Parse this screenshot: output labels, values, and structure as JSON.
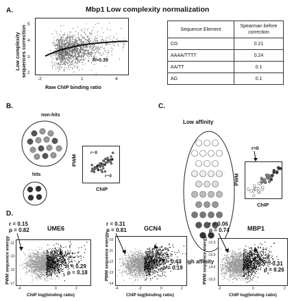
{
  "panel_a": {
    "label": "A.",
    "title": "Mbp1 Low complexity normalization",
    "ylabel_line1": "Low complexity",
    "ylabel_line2": "sequences correction",
    "xlabel": "Raw ChIP binding ratio",
    "yticks": [
      "5",
      "4",
      "3",
      "2"
    ],
    "xticks": [
      "-2",
      "1",
      "4"
    ],
    "r_label": "R=0.39",
    "table": {
      "headers": [
        "Sequence Element",
        "Spearman before correction"
      ],
      "rows": [
        [
          "CG",
          "0.21"
        ],
        [
          "AAAA/TTTT",
          "0.24"
        ],
        [
          "AA/TT",
          "0.1"
        ],
        [
          "AG",
          "0.1"
        ]
      ]
    }
  },
  "panel_b": {
    "label": "B.",
    "nonhits": "non-hits",
    "hits": "hits",
    "ylabel": "PWM",
    "xlabel": "ChIP",
    "r1": "r~0",
    "r2": "r~0"
  },
  "panel_c": {
    "label": "C.",
    "low": "Low affinity",
    "high": "High affinity",
    "ylabel": "PWM",
    "xlabel": "ChIP",
    "r": "r>0"
  },
  "panel_d": {
    "label": "D.",
    "ylabel": "PWM sequence energy",
    "xlabel": "ChIP log(binding ratio)",
    "plots": [
      {
        "name": "UME6",
        "r1": "r = 0.15",
        "rho1": "ρ = 0.82",
        "r2": "r = 0.29",
        "rho2": "ρ = 0.18",
        "yticks": [
          "-11",
          "-13",
          "-15",
          "-17"
        ],
        "xticks": [
          "-4",
          "0",
          "2"
        ]
      },
      {
        "name": "GCN4",
        "r1": "r = 0.31",
        "rho1": "ρ = 0.81",
        "r2": "r = 0.43",
        "rho2": "ρ = 0.19",
        "yticks": [
          "-10",
          "-11",
          "-12",
          "-13",
          "-14"
        ],
        "xticks": [
          "-4",
          "-2",
          "0",
          "2"
        ]
      },
      {
        "name": "MBP1",
        "r1": "r = 0.06",
        "rho1": "ρ = 0.74",
        "r2": "r = 0.31",
        "rho2": "ρ = 0.26",
        "yticks": [
          "-12.5",
          "-13.5",
          "-14.5",
          "-15.5"
        ],
        "xticks": [
          "-2",
          "0",
          "2"
        ]
      }
    ]
  }
}
